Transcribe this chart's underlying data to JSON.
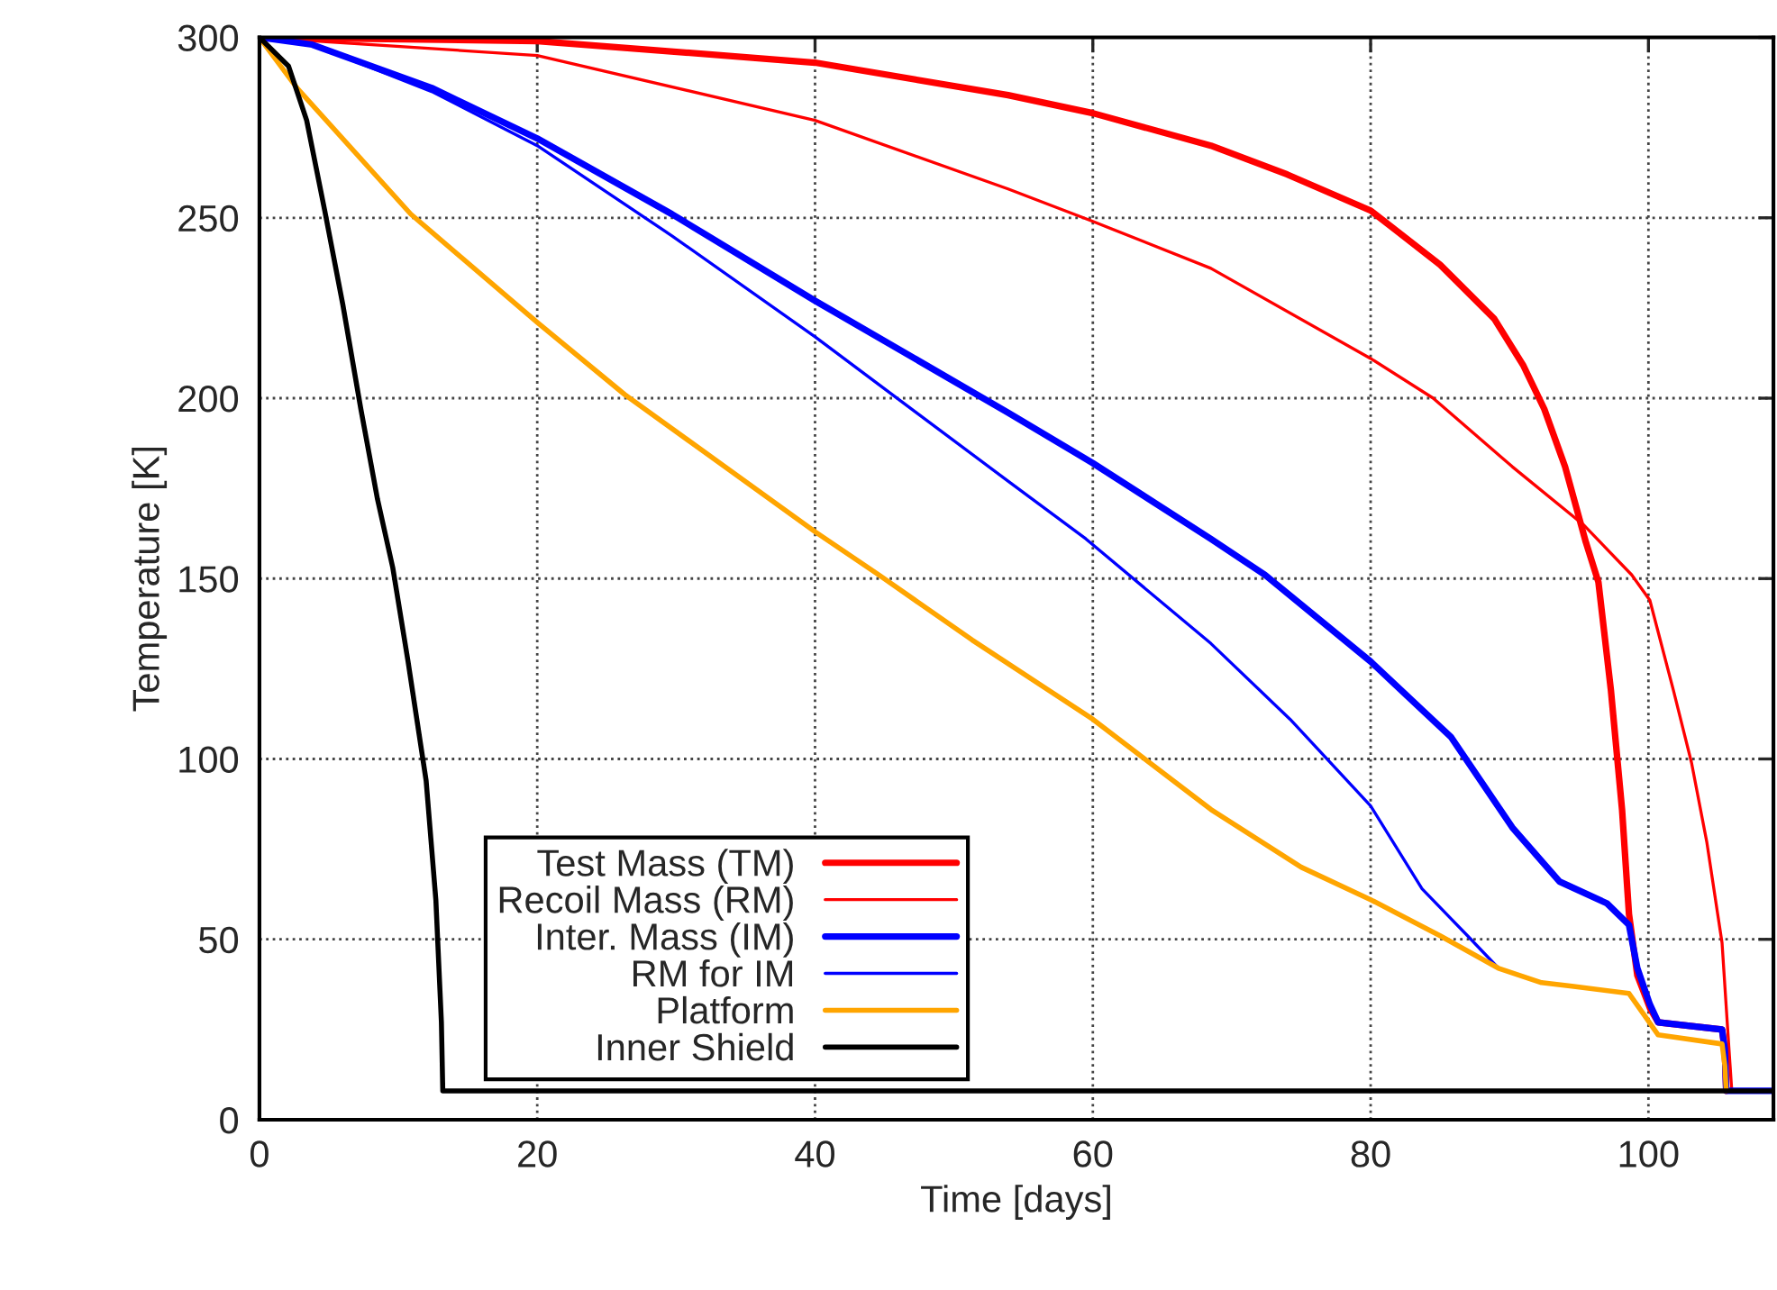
{
  "chart_data": {
    "type": "line",
    "xlabel": "Time [days]",
    "ylabel": "Temperature [K]",
    "xlim": [
      0,
      109
    ],
    "ylim": [
      0,
      300
    ],
    "xticks": [
      0,
      20,
      40,
      60,
      80,
      100
    ],
    "yticks": [
      0,
      50,
      100,
      150,
      200,
      250,
      300
    ],
    "grid": true,
    "legend": "bottom left",
    "marker": "none",
    "line_style": "solid",
    "series": [
      {
        "name": "Test Mass (TM)",
        "color": "#ff0000",
        "x": [
          0,
          20,
          40,
          53.9,
          60,
          68.5,
          74,
          80,
          85,
          88.9,
          91,
          92.5,
          94,
          95.5,
          96.4,
          97.3,
          98.1,
          98.6,
          99.2,
          100.1,
          100.7,
          105.3,
          105.5,
          105.6
        ],
        "values": [
          300,
          299,
          293,
          284,
          279,
          270,
          262,
          252,
          237,
          222,
          209,
          197,
          181,
          160,
          149,
          119,
          86,
          57,
          40,
          31,
          27,
          25,
          19,
          8
        ]
      },
      {
        "name": "Recoil Mass (RM)",
        "color": "#ff0000",
        "x": [
          0,
          20,
          40,
          53.9,
          60,
          68.5,
          80,
          84.5,
          90.2,
          95.3,
          98.8,
          100.1,
          101.8,
          103.1,
          104.2,
          105.3,
          105.8,
          106
        ],
        "values": [
          300,
          295,
          277,
          258,
          249,
          236,
          211,
          200,
          181,
          165,
          151,
          144,
          119,
          99,
          77,
          49,
          19.5,
          8
        ]
      },
      {
        "name": "Inter. Mass (IM)",
        "color": "#0000ff",
        "x": [
          0,
          3.8,
          12.4,
          20,
          29.7,
          40,
          53.9,
          60,
          68.5,
          72.4,
          80,
          85.8,
          90.2,
          93.6,
          97,
          98.6,
          99.2,
          100.1,
          100.7,
          105.3,
          105.5,
          105.6,
          109
        ],
        "values": [
          300,
          298,
          286,
          272,
          251,
          227,
          196,
          182,
          161,
          151,
          127,
          106,
          81,
          66,
          60,
          54,
          42,
          32,
          27,
          25,
          19.5,
          8,
          8
        ]
      },
      {
        "name": "RM for IM",
        "color": "#0000ff",
        "x": [
          0,
          3.8,
          12.4,
          20,
          29.7,
          40,
          53.9,
          59.5,
          68.5,
          74.2,
          80,
          83.7,
          87.1,
          89.2
        ],
        "values": [
          300,
          298,
          285,
          270,
          245,
          217,
          177,
          161,
          132,
          111,
          87,
          64,
          50.5,
          42
        ]
      },
      {
        "name": "Platform",
        "color": "#ffa500",
        "x": [
          0,
          2.7,
          10.9,
          20,
          26.3,
          40,
          44.6,
          51.3,
          60,
          68.5,
          75,
          80,
          85,
          89.2,
          92.3,
          94.5,
          98.6,
          99.7,
          100.7,
          105.3,
          105.5,
          105.6
        ],
        "values": [
          300,
          286,
          251,
          221,
          201,
          163,
          151,
          133,
          111,
          86,
          70,
          61,
          51,
          42,
          38,
          37,
          35,
          29,
          23.5,
          21,
          15,
          8
        ]
      },
      {
        "name": "Inner Shield",
        "color": "#000000",
        "x": [
          0,
          2.1,
          3.4,
          4.7,
          6,
          7.3,
          8.5,
          9.6,
          10.7,
          12,
          12.7,
          13.1,
          13.2,
          109
        ],
        "values": [
          300,
          292,
          277,
          252,
          226,
          197,
          172,
          153,
          127,
          94,
          61,
          27,
          8,
          8
        ]
      }
    ]
  }
}
